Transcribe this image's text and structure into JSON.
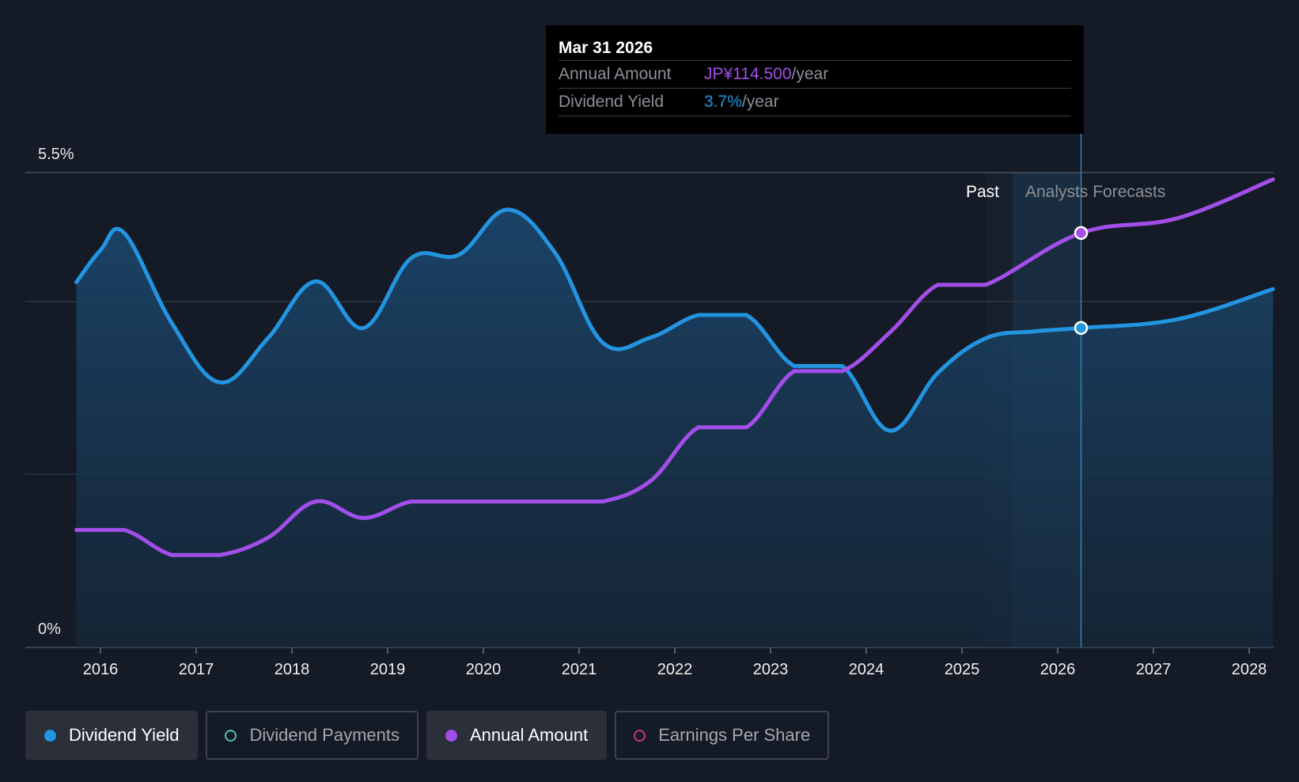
{
  "tooltip": {
    "date": "Mar 31 2026",
    "rows": [
      {
        "label": "Annual Amount",
        "value": "JP¥114.500",
        "unit": "/year"
      },
      {
        "label": "Dividend Yield",
        "value": "3.7%",
        "unit": "/year"
      }
    ]
  },
  "colors": {
    "background": "#151b26",
    "yield": "#2394e0",
    "annual_amount": "#a24ee8",
    "payments": "#4fc2b0",
    "eps": "#c23a72"
  },
  "legend": [
    {
      "label": "Dividend Yield",
      "active": true,
      "color": "#2394e0"
    },
    {
      "label": "Dividend Payments",
      "active": false,
      "color": "#4fc2b0"
    },
    {
      "label": "Annual Amount",
      "active": true,
      "color": "#a24ee8"
    },
    {
      "label": "Earnings Per Share",
      "active": false,
      "color": "#c23a72"
    }
  ],
  "chart_data": {
    "type": "line",
    "y_axis": {
      "top_label": "5.5%",
      "bottom_label": "0%",
      "ylim": [
        0,
        5.5
      ]
    },
    "x_ticks": [
      "2016",
      "2017",
      "2018",
      "2019",
      "2020",
      "2021",
      "2022",
      "2023",
      "2024",
      "2025",
      "2026",
      "2027",
      "2028"
    ],
    "regions": {
      "past_label": "Past",
      "forecast_label": "Analysts Forecasts"
    },
    "grid": true,
    "series": [
      {
        "name": "Dividend Yield",
        "color": "#2394e0",
        "area": true,
        "points": [
          [
            "2015-10-01",
            4.23
          ],
          [
            "2016-01-01",
            4.6
          ],
          [
            "2016-04-01",
            4.8
          ],
          [
            "2016-10-01",
            3.75
          ],
          [
            "2017-04-01",
            3.07
          ],
          [
            "2017-10-01",
            3.58
          ],
          [
            "2018-04-01",
            4.24
          ],
          [
            "2018-10-01",
            3.7
          ],
          [
            "2019-04-01",
            4.51
          ],
          [
            "2019-10-01",
            4.55
          ],
          [
            "2020-04-01",
            5.07
          ],
          [
            "2020-10-01",
            4.57
          ],
          [
            "2021-04-01",
            3.53
          ],
          [
            "2021-10-01",
            3.59
          ],
          [
            "2022-04-01",
            3.85
          ],
          [
            "2022-10-01",
            3.85
          ],
          [
            "2023-04-01",
            3.26
          ],
          [
            "2023-10-01",
            3.26
          ],
          [
            "2024-04-01",
            2.51
          ],
          [
            "2024-10-01",
            3.18
          ],
          [
            "2025-04-01",
            3.58
          ],
          [
            "2025-10-01",
            3.66
          ],
          [
            "2026-03-31",
            3.7
          ],
          [
            "2027-04-01",
            3.8
          ],
          [
            "2028-04-01",
            4.15
          ]
        ]
      },
      {
        "name": "Annual Amount",
        "color": "#a24ee8",
        "area": false,
        "points": [
          [
            "2015-10-01",
            1.36
          ],
          [
            "2016-04-01",
            1.36
          ],
          [
            "2016-10-01",
            1.07
          ],
          [
            "2017-04-01",
            1.07
          ],
          [
            "2017-10-01",
            1.27
          ],
          [
            "2018-04-01",
            1.69
          ],
          [
            "2018-10-01",
            1.5
          ],
          [
            "2019-04-01",
            1.69
          ],
          [
            "2019-10-01",
            1.69
          ],
          [
            "2020-04-01",
            1.69
          ],
          [
            "2020-10-01",
            1.69
          ],
          [
            "2021-04-01",
            1.69
          ],
          [
            "2021-10-01",
            1.93
          ],
          [
            "2022-04-01",
            2.55
          ],
          [
            "2022-10-01",
            2.55
          ],
          [
            "2023-04-01",
            3.2
          ],
          [
            "2023-10-01",
            3.2
          ],
          [
            "2024-04-01",
            3.65
          ],
          [
            "2024-10-01",
            4.2
          ],
          [
            "2025-04-01",
            4.2
          ],
          [
            "2026-03-31",
            4.8
          ],
          [
            "2027-04-01",
            4.97
          ],
          [
            "2028-04-01",
            5.42
          ]
        ]
      }
    ],
    "highlight_date": "2026-03-31"
  }
}
